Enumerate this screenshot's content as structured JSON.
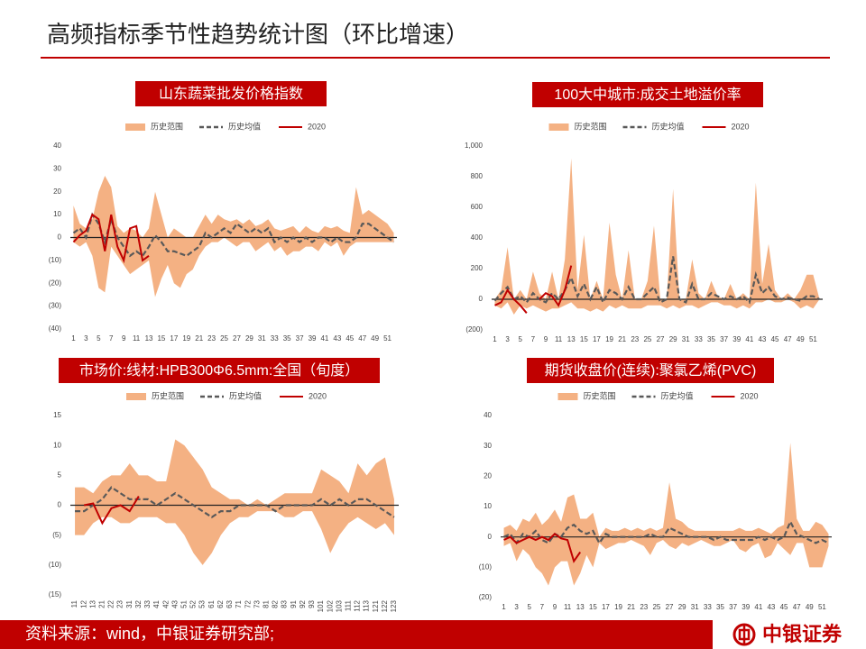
{
  "header": {
    "title": "高频指标季节性趋势统计图（环比增速）"
  },
  "footer": {
    "source": "资料来源：wind，中银证券研究部;",
    "brand": "中银证券"
  },
  "chart_data": [
    {
      "type": "band-line",
      "title": "山东蔬菜批发价格指数",
      "categories": [
        "1",
        null,
        "3",
        null,
        "5",
        null,
        "7",
        null,
        "9",
        null,
        "11",
        null,
        "13",
        null,
        "15",
        null,
        "17",
        null,
        "19",
        null,
        "21",
        null,
        "23",
        null,
        "25",
        null,
        "27",
        null,
        "29",
        null,
        "31",
        null,
        "33",
        null,
        "35",
        null,
        "37",
        null,
        "39",
        null,
        "41",
        null,
        "43",
        null,
        "45",
        null,
        "47",
        null,
        "49",
        null,
        "51",
        null
      ],
      "ylim": [
        -40,
        40
      ],
      "yticks": [
        {
          "value": -40,
          "label": "(40)"
        },
        {
          "value": -30,
          "label": "(30)"
        },
        {
          "value": -20,
          "label": "(20)"
        },
        {
          "value": -10,
          "label": "(10)"
        },
        0,
        10,
        20,
        30,
        40
      ],
      "series": [
        {
          "name": "历史范围",
          "color": "#f4b183",
          "high": [
            14,
            6,
            4,
            8,
            20,
            27,
            22,
            5,
            2,
            4,
            3,
            0,
            4,
            20,
            10,
            0,
            4,
            2,
            0,
            0,
            5,
            10,
            6,
            10,
            8,
            7,
            8,
            6,
            8,
            5,
            6,
            8,
            4,
            3,
            4,
            5,
            2,
            5,
            3,
            2,
            5,
            4,
            5,
            3,
            2,
            22,
            10,
            12,
            10,
            8,
            6,
            2
          ],
          "low": [
            -2,
            -4,
            -2,
            -8,
            -22,
            -24,
            -4,
            -8,
            -12,
            -16,
            -14,
            -12,
            -10,
            -26,
            -18,
            -12,
            -20,
            -22,
            -16,
            -14,
            -8,
            -4,
            -2,
            -2,
            0,
            -2,
            -4,
            -2,
            -2,
            -6,
            -4,
            -2,
            -6,
            -4,
            -8,
            -6,
            -6,
            -4,
            -4,
            -6,
            -2,
            -4,
            -2,
            -8,
            -4,
            -2,
            -2,
            -2,
            -2,
            -2,
            -2,
            -2
          ]
        },
        {
          "name": "历史均值",
          "color": "#595959",
          "values": [
            2,
            4,
            0,
            10,
            6,
            -2,
            8,
            0,
            -4,
            -8,
            -6,
            -8,
            -4,
            1,
            -2,
            -6,
            -6,
            -7,
            -8,
            -6,
            -4,
            2,
            0,
            2,
            4,
            2,
            6,
            4,
            2,
            4,
            2,
            4,
            -2,
            0,
            -2,
            0,
            -2,
            0,
            -2,
            0,
            0,
            -2,
            0,
            -2,
            -2,
            0,
            6,
            6,
            4,
            2,
            0,
            -2
          ]
        },
        {
          "name": "2020",
          "color": "#c00000",
          "values": [
            -2,
            1,
            3,
            10,
            8,
            -6,
            10,
            -4,
            -10,
            4,
            5,
            -10,
            -8,
            null,
            null,
            null,
            null,
            null,
            null,
            null,
            null,
            null,
            null,
            null,
            null,
            null,
            null,
            null,
            null,
            null,
            null,
            null,
            null,
            null,
            null,
            null,
            null,
            null,
            null,
            null,
            null,
            null,
            null,
            null,
            null,
            null,
            null,
            null,
            null,
            null,
            null,
            null
          ]
        }
      ]
    },
    {
      "type": "band-line",
      "title": "100大中城市:成交土地溢价率",
      "categories": [
        "1",
        null,
        "3",
        null,
        "5",
        null,
        "7",
        null,
        "9",
        null,
        "11",
        null,
        "13",
        null,
        "15",
        null,
        "17",
        null,
        "19",
        null,
        "21",
        null,
        "23",
        null,
        "25",
        null,
        "27",
        null,
        "29",
        null,
        "31",
        null,
        "33",
        null,
        "35",
        null,
        "37",
        null,
        "39",
        null,
        "41",
        null,
        "43",
        null,
        "45",
        null,
        "47",
        null,
        "49",
        null,
        "51",
        null
      ],
      "ylim": [
        -200,
        1000
      ],
      "yticks": [
        {
          "value": -200,
          "label": "(200)"
        },
        0,
        200,
        400,
        600,
        800,
        {
          "value": 1000,
          "label": "1,000"
        }
      ],
      "series": [
        {
          "name": "历史范围",
          "color": "#f4b183",
          "high": [
            0,
            60,
            340,
            0,
            60,
            0,
            180,
            40,
            0,
            180,
            0,
            260,
            920,
            60,
            420,
            0,
            120,
            0,
            500,
            160,
            0,
            320,
            0,
            0,
            120,
            480,
            0,
            0,
            720,
            0,
            0,
            260,
            40,
            0,
            120,
            20,
            0,
            100,
            0,
            40,
            0,
            760,
            100,
            360,
            60,
            0,
            40,
            0,
            60,
            160,
            160,
            0
          ],
          "low": [
            -40,
            -60,
            -20,
            -100,
            -40,
            -60,
            -40,
            -60,
            -80,
            -60,
            -60,
            -40,
            -20,
            -60,
            -60,
            -80,
            -60,
            -80,
            -40,
            -60,
            -40,
            -60,
            -60,
            -60,
            -40,
            -40,
            -40,
            -60,
            -40,
            -60,
            -40,
            -40,
            -60,
            -40,
            -20,
            -20,
            -40,
            -40,
            -60,
            -40,
            -60,
            -20,
            -20,
            0,
            -20,
            -20,
            0,
            -20,
            -60,
            -40,
            -60,
            0
          ]
        },
        {
          "name": "历史均值",
          "color": "#595959",
          "values": [
            -10,
            40,
            80,
            0,
            20,
            -20,
            40,
            0,
            -20,
            40,
            0,
            60,
            140,
            20,
            100,
            0,
            80,
            -20,
            60,
            40,
            0,
            80,
            0,
            0,
            40,
            80,
            -20,
            0,
            280,
            0,
            -20,
            100,
            0,
            0,
            40,
            20,
            0,
            20,
            0,
            20,
            -20,
            160,
            40,
            80,
            20,
            0,
            10,
            0,
            -10,
            20,
            20,
            0
          ]
        },
        {
          "name": "2020",
          "color": "#c00000",
          "values": [
            -40,
            -20,
            60,
            0,
            -40,
            -90,
            null,
            0,
            40,
            20,
            -40,
            60,
            220,
            null,
            null,
            null,
            null,
            null,
            null,
            null,
            null,
            null,
            null,
            null,
            null,
            null,
            null,
            null,
            null,
            null,
            null,
            null,
            null,
            null,
            null,
            null,
            null,
            null,
            null,
            null,
            null,
            null,
            null,
            null,
            null,
            null,
            null,
            null,
            null,
            null,
            null,
            null
          ]
        }
      ]
    },
    {
      "type": "band-line",
      "title": "市场价:线材:HPB300Φ6.5mm:全国（旬度）",
      "categories": [
        "11",
        "12",
        "13",
        "21",
        "22",
        "23",
        "31",
        "32",
        "33",
        "41",
        "42",
        "43",
        "51",
        "52",
        "53",
        "61",
        "62",
        "63",
        "71",
        "72",
        "73",
        "81",
        "82",
        "83",
        "91",
        "92",
        "93",
        "101",
        "102",
        "103",
        "111",
        "112",
        "113",
        "121",
        "122",
        "123"
      ],
      "ylim": [
        -15,
        15
      ],
      "yticks": [
        {
          "value": -15,
          "label": "(15)"
        },
        {
          "value": -10,
          "label": "(10)"
        },
        {
          "value": -5,
          "label": "(5)"
        },
        0,
        5,
        10,
        15
      ],
      "series": [
        {
          "name": "历史范围",
          "color": "#f4b183",
          "high": [
            3,
            3,
            2,
            4,
            5,
            5,
            7,
            5,
            5,
            4,
            4,
            11,
            10,
            8,
            6,
            3,
            2,
            1,
            1,
            0,
            1,
            0,
            1,
            2,
            2,
            2,
            2,
            6,
            5,
            4,
            2,
            7,
            5,
            7,
            8,
            1
          ],
          "low": [
            -5,
            -5,
            -3,
            -2,
            -2,
            -3,
            -3,
            -2,
            -2,
            -2,
            -3,
            -3,
            -5,
            -8,
            -10,
            -8,
            -5,
            -3,
            -2,
            -2,
            -1,
            -1,
            -1,
            -2,
            -2,
            -1,
            -1,
            -4,
            -8,
            -5,
            -3,
            -2,
            -3,
            -4,
            -3,
            -5
          ]
        },
        {
          "name": "历史均值",
          "color": "#595959",
          "values": [
            -1,
            -1,
            0,
            1,
            3,
            2,
            1,
            1,
            1,
            0,
            1,
            2,
            1,
            0,
            -1,
            -2,
            -1,
            -1,
            0,
            0,
            0,
            0,
            -1,
            0,
            0,
            0,
            0,
            1,
            0,
            1,
            0,
            1,
            1,
            0,
            -1,
            -2
          ]
        },
        {
          "name": "2020",
          "color": "#c00000",
          "values": [
            null,
            0,
            0.3,
            -3,
            -0.5,
            0,
            -1,
            1.5,
            null,
            null,
            null,
            null,
            null,
            null,
            null,
            null,
            null,
            null,
            null,
            null,
            null,
            null,
            null,
            null,
            null,
            null,
            null,
            null,
            null,
            null,
            null,
            null,
            null,
            null,
            null,
            null
          ]
        }
      ]
    },
    {
      "type": "band-line",
      "title": "期货收盘价(连续):聚氯乙烯(PVC)",
      "categories": [
        "1",
        null,
        "3",
        null,
        "5",
        null,
        "7",
        null,
        "9",
        null,
        "11",
        null,
        "13",
        null,
        "15",
        null,
        "17",
        null,
        "19",
        null,
        "21",
        null,
        "23",
        null,
        "25",
        null,
        "27",
        null,
        "29",
        null,
        "31",
        null,
        "33",
        null,
        "35",
        null,
        "37",
        null,
        "39",
        null,
        "41",
        null,
        "43",
        null,
        "45",
        null,
        "47",
        null,
        "49",
        null,
        "51",
        null
      ],
      "ylim": [
        -20,
        40
      ],
      "yticks": [
        {
          "value": -20,
          "label": "(20)"
        },
        {
          "value": -10,
          "label": "(10)"
        },
        0,
        10,
        20,
        30,
        40
      ],
      "series": [
        {
          "name": "历史范围",
          "color": "#f4b183",
          "high": [
            3,
            4,
            2,
            6,
            5,
            8,
            4,
            6,
            9,
            5,
            13,
            14,
            6,
            6,
            8,
            0,
            3,
            2,
            2,
            3,
            2,
            3,
            2,
            3,
            2,
            3,
            18,
            6,
            5,
            3,
            2,
            2,
            2,
            2,
            2,
            2,
            2,
            3,
            2,
            2,
            3,
            2,
            1,
            3,
            4,
            31,
            6,
            2,
            2,
            5,
            4,
            1
          ],
          "low": [
            -3,
            -2,
            -8,
            -4,
            -6,
            -10,
            -12,
            -16,
            -10,
            -8,
            -8,
            -16,
            -12,
            -6,
            -10,
            -2,
            -4,
            -3,
            -2,
            -2,
            -1,
            -2,
            -3,
            -6,
            -2,
            -1,
            -3,
            -4,
            -2,
            -3,
            -2,
            -1,
            -2,
            -3,
            -3,
            -2,
            -1,
            -4,
            -5,
            -3,
            -2,
            -7,
            -6,
            -2,
            -4,
            -6,
            -2,
            -2,
            -10,
            -10,
            -10,
            -3
          ]
        },
        {
          "name": "历史均值",
          "color": "#595959",
          "values": [
            0,
            1,
            -2,
            1,
            0,
            2,
            -1,
            -2,
            1,
            0,
            3,
            4,
            2,
            1,
            2,
            -2,
            1,
            0,
            0,
            0,
            0,
            0,
            0,
            1,
            0,
            0,
            3,
            2,
            1,
            0,
            0,
            0,
            0,
            -1,
            0,
            -1,
            -1,
            -1,
            -1,
            -1,
            0,
            -1,
            0,
            -1,
            0,
            5,
            1,
            0,
            -1,
            -2,
            -1,
            -2
          ]
        },
        {
          "name": "2020",
          "color": "#c00000",
          "values": [
            -1,
            0,
            -2,
            -1,
            0,
            -1,
            0,
            -1,
            1,
            -0.5,
            -1,
            -8,
            -5,
            null,
            null,
            null,
            null,
            null,
            null,
            null,
            null,
            null,
            null,
            null,
            null,
            null,
            null,
            null,
            null,
            null,
            null,
            null,
            null,
            null,
            null,
            null,
            null,
            null,
            null,
            null,
            null,
            null,
            null,
            null,
            null,
            null,
            null,
            null,
            null,
            null,
            null,
            null
          ]
        }
      ]
    }
  ]
}
